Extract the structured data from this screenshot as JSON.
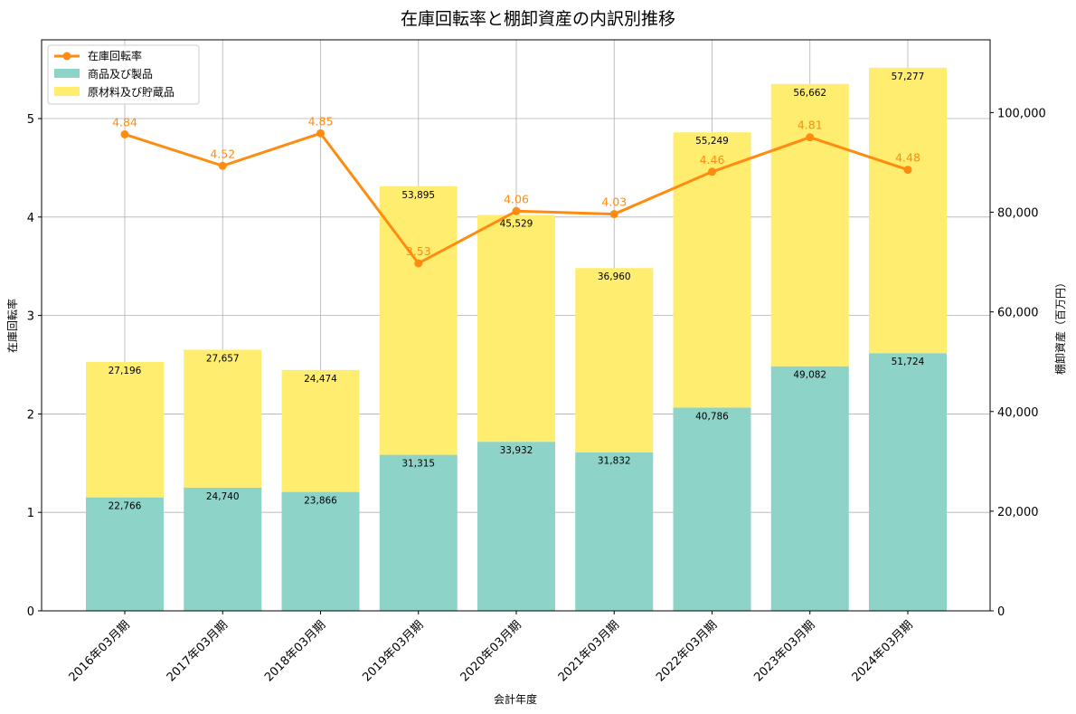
{
  "chart_data": {
    "type": "bar",
    "stacked": true,
    "title": "在庫回転率と棚卸資産の内訳別推移",
    "xlabel": "会計年度",
    "ylabel_left": "在庫回転率",
    "ylabel_right": "棚卸資産（百万円）",
    "categories": [
      "2016年03月期",
      "2017年03月期",
      "2018年03月期",
      "2019年03月期",
      "2020年03月期",
      "2021年03月期",
      "2022年03月期",
      "2023年03月期",
      "2024年03月期"
    ],
    "bar_series": [
      {
        "name": "商品及び製品",
        "color": "#8dd3c7",
        "values": [
          22766,
          24740,
          23866,
          31315,
          33932,
          31832,
          40786,
          49082,
          51724
        ],
        "labels": [
          "22,766",
          "24,740",
          "23,866",
          "31,315",
          "33,932",
          "31,832",
          "40,786",
          "49,082",
          "51,724"
        ]
      },
      {
        "name": "原材料及び貯蔵品",
        "color": "#ffed6f",
        "values": [
          27196,
          27657,
          24474,
          53895,
          45529,
          36960,
          55249,
          56662,
          57277
        ],
        "labels": [
          "27,196",
          "27,657",
          "24,474",
          "53,895",
          "45,529",
          "36,960",
          "55,249",
          "56,662",
          "57,277"
        ]
      }
    ],
    "line_series": {
      "name": "在庫回転率",
      "color": "#ff8c10",
      "values": [
        4.84,
        4.52,
        4.85,
        3.53,
        4.06,
        4.03,
        4.46,
        4.81,
        4.48
      ],
      "labels": [
        "4.84",
        "4.52",
        "4.85",
        "3.53",
        "4.06",
        "4.03",
        "4.46",
        "4.81",
        "4.48"
      ]
    },
    "ylim_left": [
      0,
      5.8
    ],
    "yticks_left": [
      "0",
      "1",
      "2",
      "3",
      "4",
      "5"
    ],
    "ylim_right": [
      0,
      114600
    ],
    "yticks_right": [
      "0",
      "20,000",
      "40,000",
      "60,000",
      "80,000",
      "100,000"
    ],
    "grid": true,
    "legend_position": "top-left"
  }
}
